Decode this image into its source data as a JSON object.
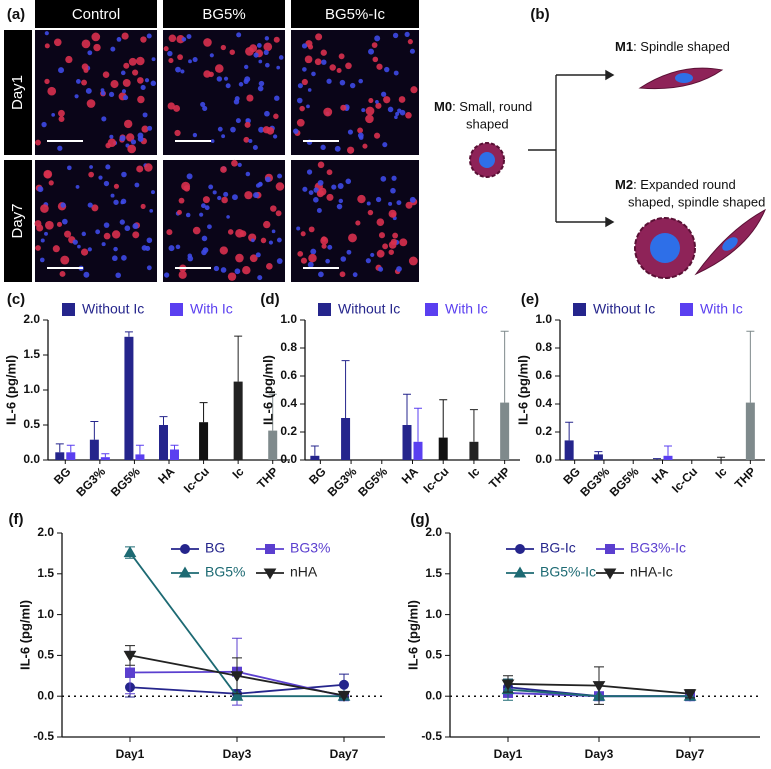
{
  "figure_a": {
    "label": "(a)",
    "columns": [
      "Control",
      "BG5%",
      "BG5%-Ic"
    ],
    "rows": [
      "Day1",
      "Day7"
    ]
  },
  "figure_b": {
    "label": "(b)",
    "m0": {
      "name": "M0",
      "lines": [
        ": Small, round",
        "shaped"
      ]
    },
    "m1": {
      "name": "M1",
      "lines": [
        ": Spindle shaped"
      ]
    },
    "m2": {
      "name": "M2",
      "lines": [
        ": Expanded round",
        "shaped, spindle shaped"
      ]
    }
  },
  "chart_data": [
    {
      "type": "bar",
      "panel": "(c)",
      "ylabel": "IL-6 (pg/ml)",
      "categories": [
        "BG",
        "BG3%",
        "BG5%",
        "HA",
        "Ic-Cu",
        "Ic",
        "THP"
      ],
      "ylim": [
        0,
        2
      ],
      "yticks": [
        {
          "value": 0,
          "label": "0.0"
        },
        0.5,
        {
          "value": 1,
          "label": "1.0"
        },
        1.5,
        {
          "value": 2,
          "label": "2.0"
        }
      ],
      "series": [
        {
          "name": "Without Ic",
          "color": "#25258c",
          "values": [
            0.11,
            0.29,
            1.76,
            0.5,
            null,
            null,
            null
          ],
          "errors": [
            0.12,
            0.26,
            0.07,
            0.12,
            null,
            null,
            null
          ]
        },
        {
          "name": "With Ic",
          "color": "#5a3ff0",
          "values": [
            0.11,
            0.04,
            0.08,
            0.15,
            null,
            null,
            null
          ],
          "errors": [
            0.1,
            0.05,
            0.13,
            0.06,
            null,
            null,
            null
          ]
        },
        {
          "colors": [
            null,
            null,
            null,
            null,
            "#111111",
            "#222222",
            "#7f8a8c"
          ],
          "values": [
            null,
            null,
            null,
            null,
            0.54,
            1.12,
            0.42
          ],
          "errors": [
            null,
            null,
            null,
            null,
            0.28,
            0.65,
            0.52
          ]
        }
      ]
    },
    {
      "type": "bar",
      "panel": "(d)",
      "ylabel": "IL-6 (pg/ml)",
      "categories": [
        "BG",
        "BG3%",
        "BG5%",
        "HA",
        "Ic-Cu",
        "Ic",
        "THP"
      ],
      "ylim": [
        0,
        1
      ],
      "yticks": [
        {
          "value": 0,
          "label": "0.0"
        },
        0.2,
        0.4,
        0.6,
        0.8,
        {
          "value": 1,
          "label": "1.0"
        }
      ],
      "series": [
        {
          "name": "Without Ic",
          "color": "#25258c",
          "values": [
            0.03,
            0.3,
            0,
            0.25,
            null,
            null,
            null
          ],
          "errors": [
            0.07,
            0.41,
            null,
            0.22,
            null,
            null,
            null
          ]
        },
        {
          "name": "With Ic",
          "color": "#5a3ff0",
          "values": [
            0,
            0,
            0,
            0.13,
            null,
            null,
            null
          ],
          "errors": [
            null,
            null,
            null,
            0.24,
            null,
            null,
            null
          ]
        },
        {
          "colors": [
            null,
            null,
            null,
            null,
            "#111111",
            "#222222",
            "#7f8a8c"
          ],
          "values": [
            null,
            null,
            null,
            null,
            0.16,
            0.13,
            0.41
          ],
          "errors": [
            null,
            null,
            null,
            null,
            0.27,
            0.23,
            0.51
          ]
        }
      ]
    },
    {
      "type": "bar",
      "panel": "(e)",
      "ylabel": "IL-6 (pg/ml)",
      "categories": [
        "BG",
        "BG3%",
        "BG5%",
        "HA",
        "Ic-Cu",
        "Ic",
        "THP"
      ],
      "ylim": [
        0,
        1
      ],
      "yticks": [
        {
          "value": 0,
          "label": "0.0"
        },
        0.2,
        0.4,
        0.6,
        0.8,
        {
          "value": 1,
          "label": "1.0"
        }
      ],
      "series": [
        {
          "name": "Without Ic",
          "color": "#25258c",
          "values": [
            0.14,
            0.04,
            0,
            0,
            null,
            null,
            null
          ],
          "errors": [
            0.13,
            0.02,
            null,
            0.01,
            null,
            null,
            null
          ]
        },
        {
          "name": "With Ic",
          "color": "#5a3ff0",
          "values": [
            0,
            0,
            0,
            0.03,
            null,
            null,
            null
          ],
          "errors": [
            null,
            null,
            null,
            0.07,
            null,
            null,
            null
          ]
        },
        {
          "colors": [
            null,
            null,
            null,
            null,
            "#111111",
            "#222222",
            "#7f8a8c"
          ],
          "values": [
            null,
            null,
            null,
            null,
            0,
            0,
            0.41
          ],
          "errors": [
            null,
            null,
            null,
            null,
            null,
            0.02,
            0.51
          ]
        }
      ]
    },
    {
      "type": "line",
      "panel": "(f)",
      "ylabel": "IL-6 (pg/ml)",
      "categories": [
        "Day1",
        "Day3",
        "Day7"
      ],
      "ylim": [
        -0.5,
        2
      ],
      "yticks": [
        -0.5,
        {
          "value": 0,
          "label": "0.0"
        },
        0.5,
        {
          "value": 1,
          "label": "1.0"
        },
        1.5,
        {
          "value": 2,
          "label": "2.0"
        }
      ],
      "hline": 0,
      "series": [
        {
          "name": "BG",
          "color": "#25258c",
          "marker": "circle",
          "values": [
            0.11,
            0.03,
            0.14
          ],
          "errors": [
            0.12,
            0.05,
            0.13
          ]
        },
        {
          "name": "BG3%",
          "color": "#5b3fcf",
          "marker": "square",
          "values": [
            0.29,
            0.3,
            0
          ],
          "errors": [
            0.26,
            0.41,
            0.02
          ]
        },
        {
          "name": "BG5%",
          "color": "#1d6a73",
          "marker": "triangle-up",
          "values": [
            1.76,
            0,
            0
          ],
          "errors": [
            0.07,
            null,
            null
          ]
        },
        {
          "name": "nHA",
          "color": "#222222",
          "marker": "triangle-down",
          "values": [
            0.5,
            0.25,
            0.01
          ],
          "errors": [
            0.12,
            0.22,
            0.02
          ]
        }
      ]
    },
    {
      "type": "line",
      "panel": "(g)",
      "ylabel": "IL-6 (pg/ml)",
      "categories": [
        "Day1",
        "Day3",
        "Day7"
      ],
      "ylim": [
        -0.5,
        2
      ],
      "yticks": [
        -0.5,
        {
          "value": 0,
          "label": "0.0"
        },
        0.5,
        {
          "value": 1,
          "label": "1.0"
        },
        1.5,
        {
          "value": 2,
          "label": "2.0"
        }
      ],
      "hline": 0,
      "series": [
        {
          "name": "BG-Ic",
          "color": "#25258c",
          "marker": "circle",
          "values": [
            0.11,
            0,
            0
          ],
          "errors": [
            0.1,
            null,
            null
          ]
        },
        {
          "name": "BG3%-Ic",
          "color": "#5b3fcf",
          "marker": "square",
          "values": [
            0.04,
            0,
            0
          ],
          "errors": [
            0.05,
            null,
            null
          ]
        },
        {
          "name": "BG5%-Ic",
          "color": "#1d6a73",
          "marker": "triangle-up",
          "values": [
            0.08,
            0,
            0
          ],
          "errors": [
            0.13,
            null,
            null
          ]
        },
        {
          "name": "nHA-Ic",
          "color": "#222222",
          "marker": "triangle-down",
          "values": [
            0.15,
            0.13,
            0.03
          ],
          "errors": [
            0.1,
            0.23,
            0.05
          ]
        }
      ]
    }
  ]
}
